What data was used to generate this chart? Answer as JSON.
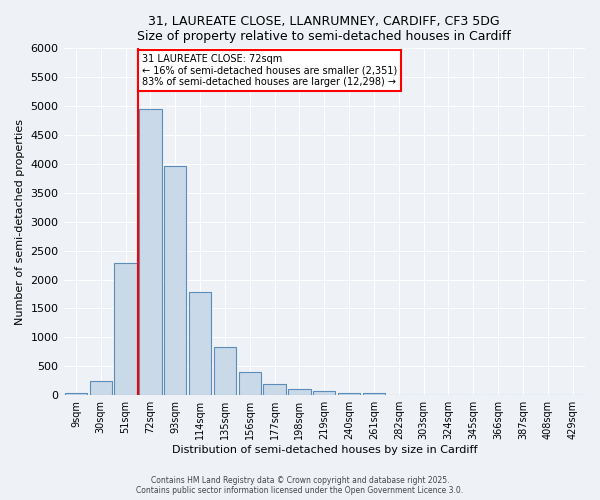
{
  "title1": "31, LAUREATE CLOSE, LLANRUMNEY, CARDIFF, CF3 5DG",
  "title2": "Size of property relative to semi-detached houses in Cardiff",
  "xlabel": "Distribution of semi-detached houses by size in Cardiff",
  "ylabel": "Number of semi-detached properties",
  "bin_labels": [
    "9sqm",
    "30sqm",
    "51sqm",
    "72sqm",
    "93sqm",
    "114sqm",
    "135sqm",
    "156sqm",
    "177sqm",
    "198sqm",
    "219sqm",
    "240sqm",
    "261sqm",
    "282sqm",
    "303sqm",
    "324sqm",
    "345sqm",
    "366sqm",
    "387sqm",
    "408sqm",
    "429sqm"
  ],
  "bar_values": [
    30,
    250,
    2280,
    4950,
    3970,
    1780,
    840,
    400,
    190,
    110,
    65,
    45,
    30,
    0,
    0,
    0,
    0,
    0,
    0,
    0,
    0
  ],
  "bar_color": "#c9d9e8",
  "bar_edge_color": "#5b8db8",
  "property_line_label": "31 LAUREATE CLOSE: 72sqm",
  "property_line_bin_index": 3,
  "pct_smaller": 16,
  "pct_larger": 83,
  "n_smaller": 2351,
  "n_larger": 12298,
  "annotation_box_color": "#ff0000",
  "ylim": [
    0,
    6000
  ],
  "yticks": [
    0,
    500,
    1000,
    1500,
    2000,
    2500,
    3000,
    3500,
    4000,
    4500,
    5000,
    5500,
    6000
  ],
  "footer1": "Contains HM Land Registry data © Crown copyright and database right 2025.",
  "footer2": "Contains public sector information licensed under the Open Government Licence 3.0.",
  "bg_color": "#eef2f7",
  "plot_bg_color": "#eef2f7"
}
